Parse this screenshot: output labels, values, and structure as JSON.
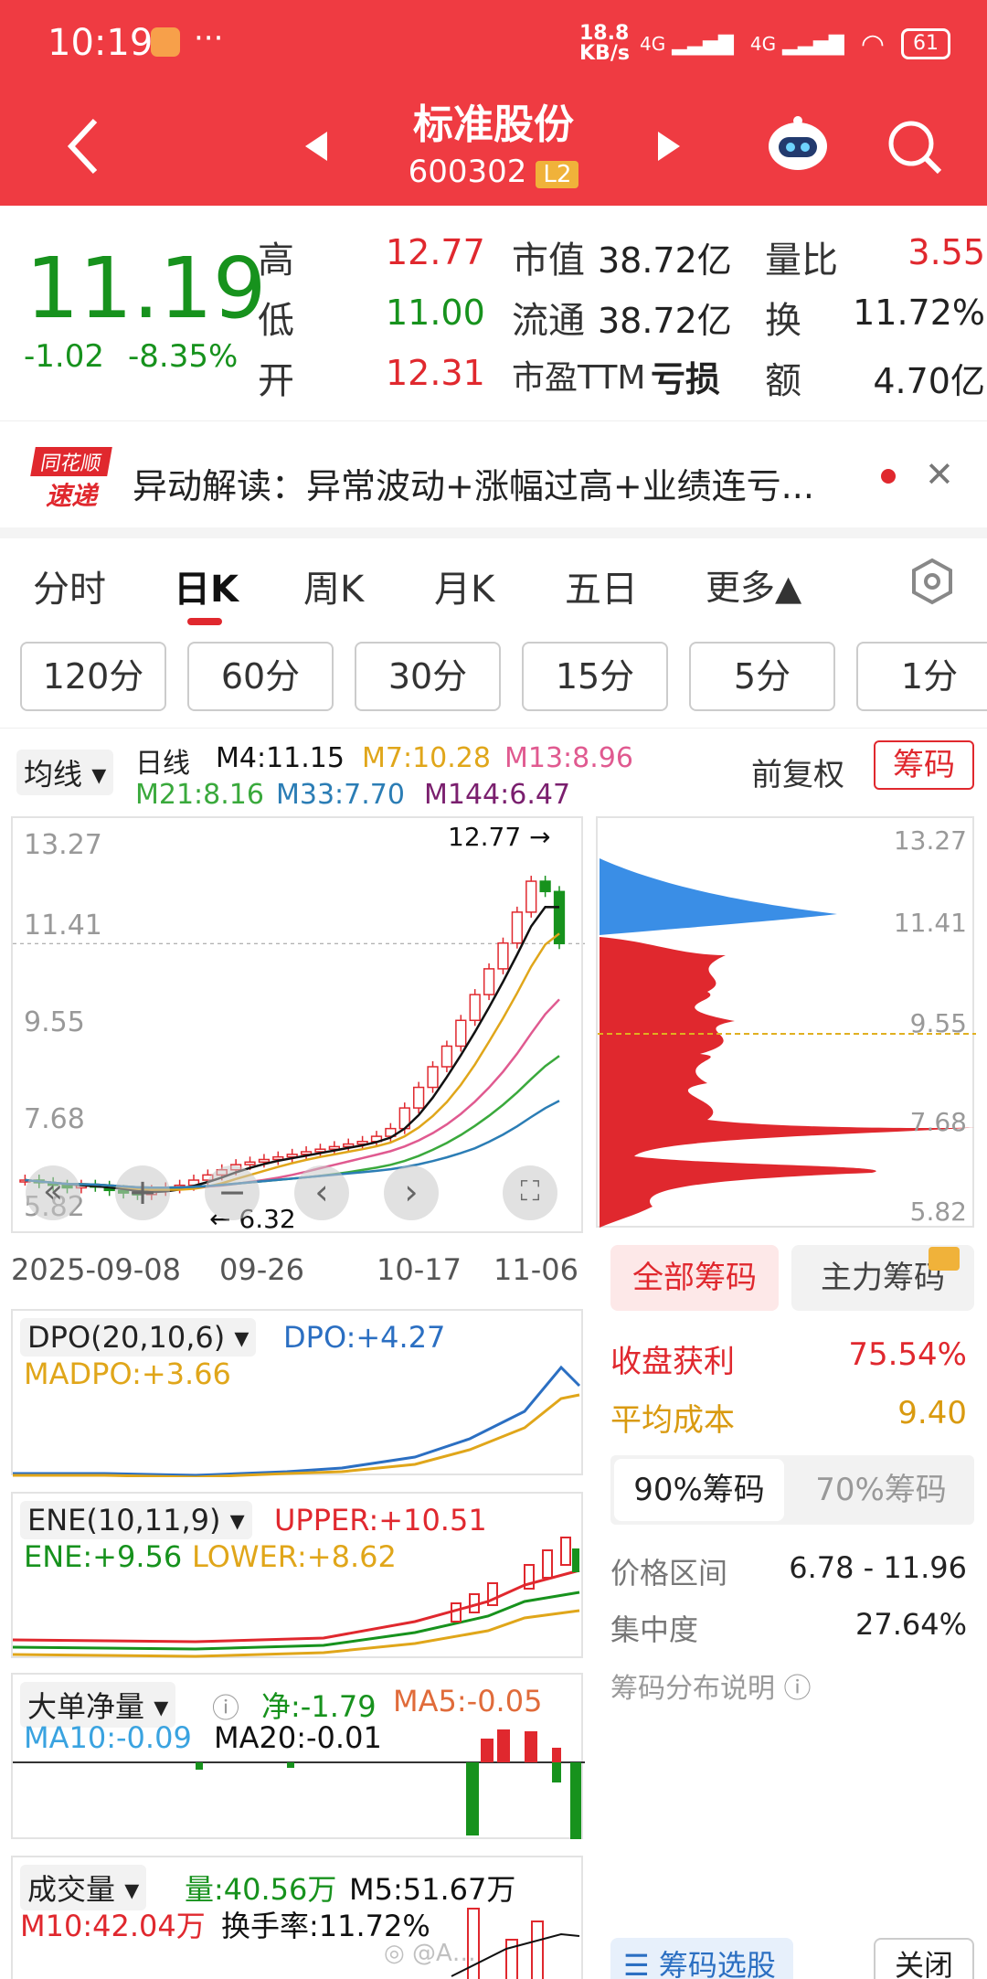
{
  "status": {
    "time": "10:19",
    "speed": "18.8 KB/s",
    "net1": "4G",
    "net2": "4G",
    "battery": "61"
  },
  "header": {
    "title": "标准股份",
    "code": "600302",
    "level": "L2"
  },
  "quote": {
    "price": "11.19",
    "change": "-1.02",
    "change_pct": "-8.35%",
    "rows": [
      {
        "l1": "高",
        "v1": "12.77",
        "l2": "市值",
        "v2": "38.72亿",
        "l3": "量比",
        "v3": "3.55"
      },
      {
        "l1": "低",
        "v1": "11.00",
        "l2": "流通",
        "v2": "38.72亿",
        "l3": "换",
        "v3": "11.72%"
      },
      {
        "l1": "开",
        "v1": "12.31",
        "l2": "市盈TTM",
        "v2": "亏损",
        "l3": "额",
        "v3": "4.70亿"
      }
    ]
  },
  "news": {
    "logo1": "同花顺",
    "logo2": "速递",
    "text": "异动解读：异常波动+涨幅过高+业绩连亏..."
  },
  "tabs": [
    "分时",
    "日K",
    "周K",
    "月K",
    "五日",
    "更多▲"
  ],
  "periods": [
    "120分",
    "60分",
    "30分",
    "15分",
    "5分",
    "1分"
  ],
  "ma": {
    "selector": "均线",
    "kind": "日线",
    "m4": "M4:11.15",
    "m7": "M7:10.28",
    "m13": "M13:8.96",
    "m21": "M21:8.16",
    "m33": "M33:7.70",
    "m144": "M144:6.47",
    "fq": "前复权",
    "chip_btn": "筹码"
  },
  "kline_axis": {
    "y": [
      "13.27",
      "11.41",
      "9.55",
      "7.68",
      "5.82"
    ],
    "high_mark": "12.77",
    "low_mark": "6.32",
    "x": [
      "2025-09-08",
      "09-26",
      "10-17",
      "11-06"
    ]
  },
  "dpo": {
    "name": "DPO(20,10,6)",
    "dpo": "DPO:+4.27",
    "madpo": "MADPO:+3.66"
  },
  "ene": {
    "name": "ENE(10,11,9)",
    "upper": "UPPER:+10.51",
    "ene": "ENE:+9.56",
    "lower": "LOWER:+8.62"
  },
  "bigorder": {
    "name": "大单净量",
    "net": "净:-1.79",
    "ma5": "MA5:-0.05",
    "ma10": "MA10:-0.09",
    "ma20": "MA20:-0.01"
  },
  "volume": {
    "name": "成交量",
    "vol": "量:40.56万",
    "m5": "M5:51.67万",
    "m10": "M10:42.04万",
    "turnover": "换手率:11.72%"
  },
  "chip": {
    "tab_all": "全部筹码",
    "tab_main": "主力筹码",
    "profit_label": "收盘获利",
    "profit": "75.54%",
    "cost_label": "平均成本",
    "cost": "9.40",
    "pct90": "90%筹码",
    "pct70": "70%筹码",
    "range_label": "价格区间",
    "range": "6.78 - 11.96",
    "conc_label": "集中度",
    "conc": "27.64%",
    "explain": "筹码分布说明",
    "select": "筹码选股",
    "close": "关闭"
  },
  "colors": {
    "header": "#ef3b42",
    "up": "#e0282e",
    "down": "#17921d"
  }
}
